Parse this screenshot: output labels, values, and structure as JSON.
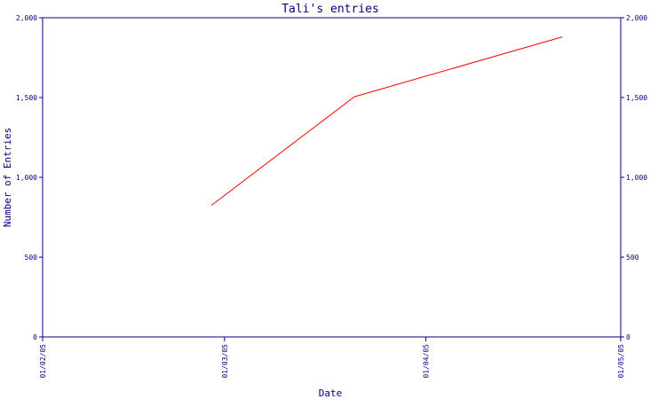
{
  "chart_data": {
    "type": "line",
    "title": "Tali's entries",
    "xlabel": "Date",
    "ylabel": "Number of Entries",
    "x_ticks": [
      "01/02/05",
      "01/03/05",
      "01/04/05",
      "01/05/05"
    ],
    "y_ticks": [
      "0",
      "500",
      "1,000",
      "1,500",
      "2,000"
    ],
    "ylim": [
      0,
      2000
    ],
    "xlim": [
      "2005-02-01",
      "2005-05-01"
    ],
    "grid": false,
    "legend": "none",
    "series": [
      {
        "x": [
          "2005-02-27",
          "2005-03-21",
          "2005-04-22"
        ],
        "y": [
          825,
          1505,
          1880
        ],
        "color": "#ff0000"
      }
    ],
    "colors": {
      "axis": "#000080",
      "text": "#000080",
      "line": "#ff0000"
    }
  }
}
